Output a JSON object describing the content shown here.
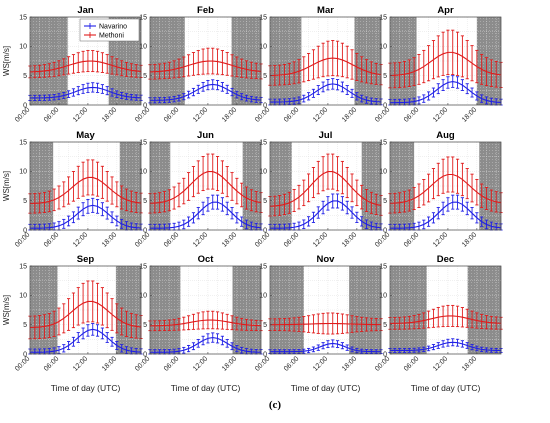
{
  "figure": {
    "caption": "(c)"
  },
  "chart_data": {
    "type": "line",
    "ylabel": "WS[m/s]",
    "xlabel": "Time of day (UTC)",
    "ylim": [
      0,
      15
    ],
    "y_ticks": [
      0,
      5,
      10,
      15
    ],
    "x_tick_labels": [
      "00:00",
      "06:00",
      "12:00",
      "18:00"
    ],
    "grid": true,
    "night_shading": true,
    "legend": {
      "location": "top-right",
      "in_panel": "Jan",
      "entries": [
        "Navarino",
        "Methoni"
      ]
    },
    "series_colors": {
      "Navarino": "#1f1fe6",
      "Methoni": "#e01b1b"
    },
    "panels": [
      {
        "title": "Jan",
        "night": [
          [
            0,
            7.8
          ],
          [
            16.3,
            23
          ]
        ],
        "navarino": {
          "peak": 3.0,
          "base": 1.2,
          "center": 13.0,
          "width": 3.5,
          "err": 0.8
        },
        "methoni": {
          "peak": 7.5,
          "base": 5.6,
          "center": 12.5,
          "width": 4.5,
          "err": 1.8
        }
      },
      {
        "title": "Feb",
        "night": [
          [
            0,
            7.2
          ],
          [
            16.9,
            23
          ]
        ],
        "navarino": {
          "peak": 3.5,
          "base": 0.8,
          "center": 13.0,
          "width": 3.5,
          "err": 0.8
        },
        "methoni": {
          "peak": 7.5,
          "base": 5.6,
          "center": 12.5,
          "width": 4.5,
          "err": 2.2
        }
      },
      {
        "title": "Mar",
        "night": [
          [
            0,
            6.5
          ],
          [
            17.5,
            23
          ]
        ],
        "navarino": {
          "peak": 3.6,
          "base": 0.5,
          "center": 13.0,
          "width": 3.3,
          "err": 0.9
        },
        "methoni": {
          "peak": 8.0,
          "base": 5.0,
          "center": 13.0,
          "width": 4.2,
          "err": 3.0
        }
      },
      {
        "title": "Apr",
        "night": [
          [
            0,
            5.5
          ],
          [
            18.0,
            23
          ]
        ],
        "navarino": {
          "peak": 4.0,
          "base": 0.4,
          "center": 13.0,
          "width": 3.3,
          "err": 1.0
        },
        "methoni": {
          "peak": 9.0,
          "base": 5.0,
          "center": 12.5,
          "width": 4.0,
          "err": 3.8
        }
      },
      {
        "title": "May",
        "night": [
          [
            0,
            4.8
          ],
          [
            18.6,
            23
          ]
        ],
        "navarino": {
          "peak": 4.2,
          "base": 0.3,
          "center": 13.0,
          "width": 3.3,
          "err": 1.2
        },
        "methoni": {
          "peak": 9.0,
          "base": 4.5,
          "center": 12.5,
          "width": 3.8,
          "err": 3.0
        }
      },
      {
        "title": "Jun",
        "night": [
          [
            0,
            4.2
          ],
          [
            19.2,
            23
          ]
        ],
        "navarino": {
          "peak": 4.8,
          "base": 0.3,
          "center": 13.5,
          "width": 3.3,
          "err": 1.2
        },
        "methoni": {
          "peak": 10.0,
          "base": 4.5,
          "center": 12.5,
          "width": 4.0,
          "err": 3.0
        }
      },
      {
        "title": "Jul",
        "night": [
          [
            0,
            4.5
          ],
          [
            19.0,
            23
          ]
        ],
        "navarino": {
          "peak": 5.0,
          "base": 0.3,
          "center": 13.5,
          "width": 3.3,
          "err": 1.2
        },
        "methoni": {
          "peak": 10.0,
          "base": 4.0,
          "center": 12.5,
          "width": 4.0,
          "err": 3.0
        }
      },
      {
        "title": "Aug",
        "night": [
          [
            0,
            5.0
          ],
          [
            18.5,
            23
          ]
        ],
        "navarino": {
          "peak": 4.8,
          "base": 0.3,
          "center": 13.5,
          "width": 3.3,
          "err": 1.2
        },
        "methoni": {
          "peak": 9.5,
          "base": 4.5,
          "center": 12.5,
          "width": 4.0,
          "err": 3.0
        }
      },
      {
        "title": "Sep",
        "night": [
          [
            0,
            5.7
          ],
          [
            17.8,
            23
          ]
        ],
        "navarino": {
          "peak": 4.2,
          "base": 0.3,
          "center": 13.0,
          "width": 3.2,
          "err": 1.0
        },
        "methoni": {
          "peak": 9.0,
          "base": 4.5,
          "center": 12.5,
          "width": 3.8,
          "err": 3.5
        }
      },
      {
        "title": "Oct",
        "night": [
          [
            0,
            6.3
          ],
          [
            17.1,
            23
          ]
        ],
        "navarino": {
          "peak": 2.8,
          "base": 0.3,
          "center": 13.0,
          "width": 3.0,
          "err": 0.8
        },
        "methoni": {
          "peak": 5.8,
          "base": 4.8,
          "center": 12.5,
          "width": 4.0,
          "err": 1.5
        }
      },
      {
        "title": "Nov",
        "night": [
          [
            0,
            7.0
          ],
          [
            16.4,
            23
          ]
        ],
        "navarino": {
          "peak": 1.8,
          "base": 0.4,
          "center": 13.0,
          "width": 2.5,
          "err": 0.6
        },
        "methoni": {
          "peak": 5.2,
          "base": 5.0,
          "center": 12.5,
          "width": 4.0,
          "err": 1.8
        }
      },
      {
        "title": "Dec",
        "night": [
          [
            0,
            7.6
          ],
          [
            16.1,
            23
          ]
        ],
        "navarino": {
          "peak": 2.0,
          "base": 0.6,
          "center": 13.0,
          "width": 3.0,
          "err": 0.6
        },
        "methoni": {
          "peak": 6.5,
          "base": 5.2,
          "center": 12.5,
          "width": 4.0,
          "err": 1.8
        }
      }
    ]
  }
}
